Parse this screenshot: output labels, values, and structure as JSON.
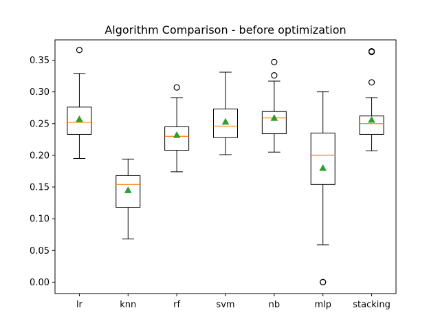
{
  "chart_data": {
    "type": "box",
    "title": "Algorithm Comparison - before optimization",
    "xlabel": "",
    "ylabel": "",
    "ylim": [
      -0.018,
      0.382
    ],
    "y_ticks": [
      "0.00",
      "0.05",
      "0.10",
      "0.15",
      "0.20",
      "0.25",
      "0.30",
      "0.35"
    ],
    "grid": false,
    "legend": "none",
    "colors": {
      "box": "#000000",
      "median": "#ff7f0e",
      "mean": "#2ca02c",
      "flier": "#000000"
    },
    "categories": [
      "lr",
      "knn",
      "rf",
      "svm",
      "nb",
      "mlp",
      "stacking"
    ],
    "boxes": [
      {
        "label": "lr",
        "whisker_low": 0.195,
        "q1": 0.233,
        "median": 0.252,
        "q3": 0.276,
        "whisker_high": 0.329,
        "mean": 0.257,
        "outliers": [
          0.366
        ]
      },
      {
        "label": "knn",
        "whisker_low": 0.068,
        "q1": 0.118,
        "median": 0.154,
        "q3": 0.168,
        "whisker_high": 0.194,
        "mean": 0.145,
        "outliers": []
      },
      {
        "label": "rf",
        "whisker_low": 0.174,
        "q1": 0.208,
        "median": 0.23,
        "q3": 0.245,
        "whisker_high": 0.291,
        "mean": 0.232,
        "outliers": [
          0.307
        ]
      },
      {
        "label": "svm",
        "whisker_low": 0.201,
        "q1": 0.228,
        "median": 0.246,
        "q3": 0.273,
        "whisker_high": 0.331,
        "mean": 0.253,
        "outliers": []
      },
      {
        "label": "nb",
        "whisker_low": 0.205,
        "q1": 0.234,
        "median": 0.259,
        "q3": 0.269,
        "whisker_high": 0.317,
        "mean": 0.259,
        "outliers": [
          0.326,
          0.347
        ]
      },
      {
        "label": "mlp",
        "whisker_low": 0.059,
        "q1": 0.154,
        "median": 0.2,
        "q3": 0.235,
        "whisker_high": 0.3,
        "mean": 0.18,
        "outliers": [
          0.0,
          0.0
        ]
      },
      {
        "label": "stacking",
        "whisker_low": 0.207,
        "q1": 0.233,
        "median": 0.25,
        "q3": 0.262,
        "whisker_high": 0.291,
        "mean": 0.256,
        "outliers": [
          0.315,
          0.363,
          0.364
        ]
      }
    ]
  }
}
